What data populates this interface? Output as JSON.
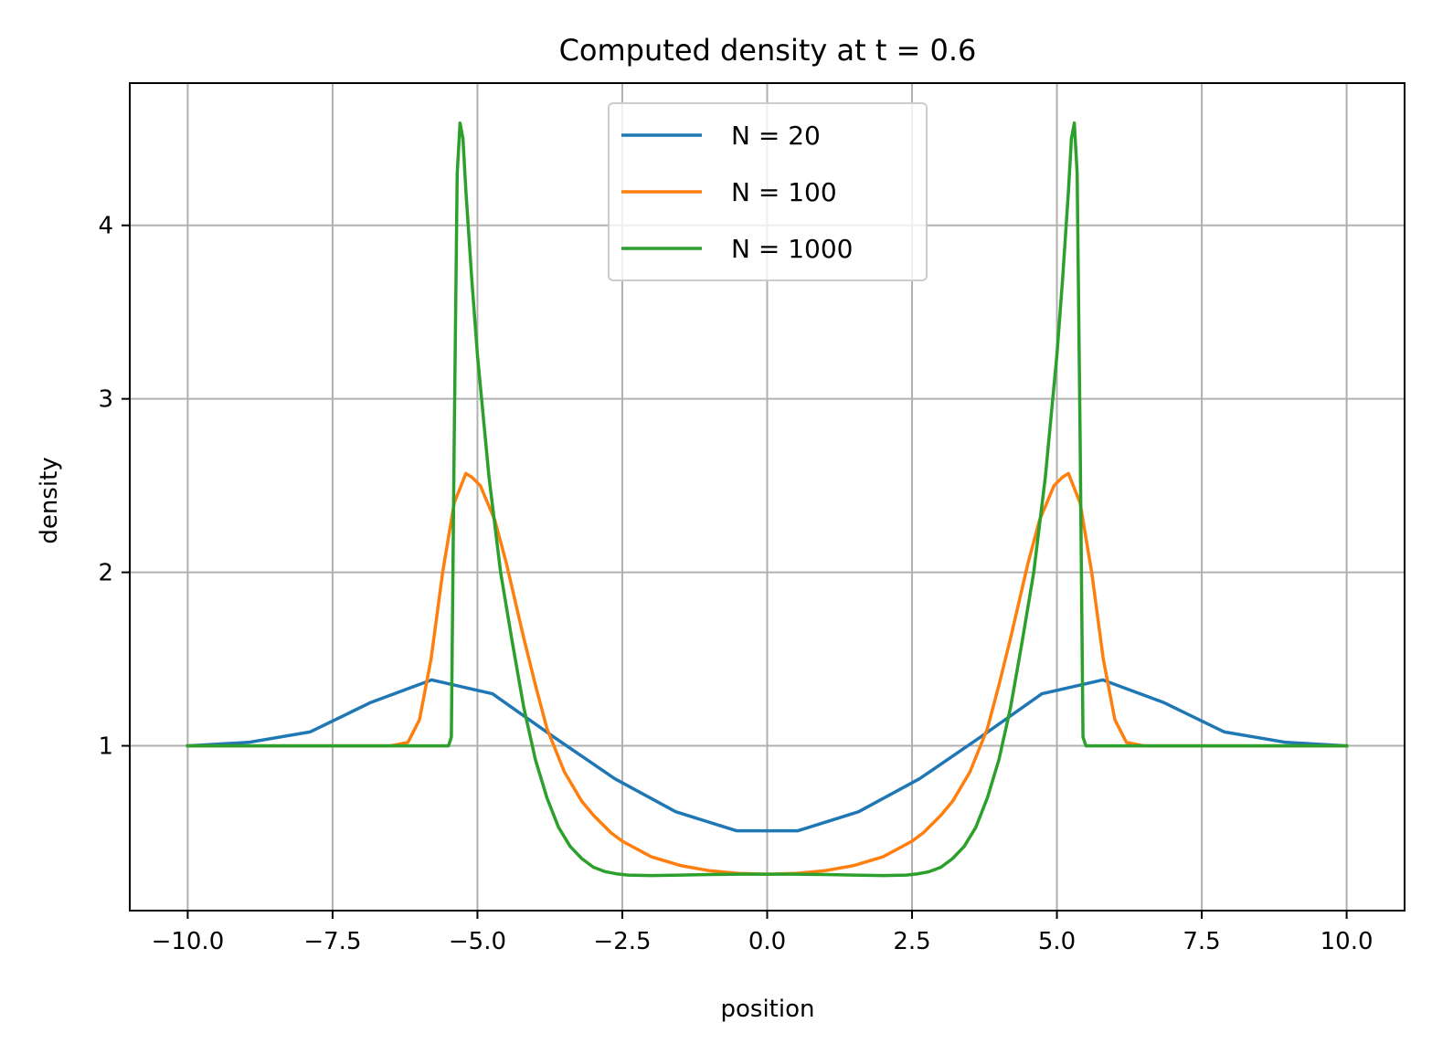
{
  "chart_data": {
    "type": "line",
    "title": "Computed density at t = 0.6",
    "xlabel": "position",
    "ylabel": "density",
    "xlim": [
      -11.0,
      11.0
    ],
    "ylim": [
      0.05,
      4.82
    ],
    "xticks": [
      -10.0,
      -7.5,
      -5.0,
      -2.5,
      0.0,
      2.5,
      5.0,
      7.5,
      10.0
    ],
    "xtick_labels": [
      "−10.0",
      "−7.5",
      "−5.0",
      "−2.5",
      "0.0",
      "2.5",
      "5.0",
      "7.5",
      "10.0"
    ],
    "yticks": [
      1,
      2,
      3,
      4
    ],
    "ytick_labels": [
      "1",
      "2",
      "3",
      "4"
    ],
    "grid": true,
    "legend_position": "upper center",
    "series": [
      {
        "name": "N = 20",
        "color": "#1f77b4",
        "x": [
          -10.0,
          -8.95,
          -7.89,
          -6.84,
          -5.79,
          -4.74,
          -3.68,
          -2.63,
          -1.58,
          -0.53,
          0.53,
          1.58,
          2.63,
          3.68,
          4.74,
          5.79,
          6.84,
          7.89,
          8.95,
          10.0
        ],
        "y": [
          1.0,
          1.02,
          1.08,
          1.25,
          1.38,
          1.3,
          1.05,
          0.81,
          0.62,
          0.51,
          0.51,
          0.62,
          0.81,
          1.05,
          1.3,
          1.38,
          1.25,
          1.08,
          1.02,
          1.0
        ]
      },
      {
        "name": "N = 100",
        "color": "#ff7f0e",
        "x": [
          -10.0,
          -7.0,
          -6.5,
          -6.2,
          -6.0,
          -5.8,
          -5.6,
          -5.4,
          -5.2,
          -5.1,
          -4.95,
          -4.7,
          -4.5,
          -4.2,
          -4.0,
          -3.8,
          -3.5,
          -3.2,
          -3.0,
          -2.7,
          -2.5,
          -2.0,
          -1.5,
          -1.0,
          -0.5,
          0.0,
          0.5,
          1.0,
          1.5,
          2.0,
          2.5,
          2.7,
          3.0,
          3.2,
          3.5,
          3.8,
          4.0,
          4.2,
          4.5,
          4.7,
          4.95,
          5.1,
          5.2,
          5.4,
          5.6,
          5.8,
          6.0,
          6.2,
          6.5,
          7.0,
          10.0
        ],
        "y": [
          1.0,
          1.0,
          1.0,
          1.02,
          1.15,
          1.5,
          2.0,
          2.4,
          2.57,
          2.55,
          2.5,
          2.3,
          2.05,
          1.62,
          1.35,
          1.1,
          0.85,
          0.68,
          0.6,
          0.5,
          0.45,
          0.36,
          0.31,
          0.28,
          0.265,
          0.26,
          0.265,
          0.28,
          0.31,
          0.36,
          0.45,
          0.5,
          0.6,
          0.68,
          0.85,
          1.1,
          1.35,
          1.62,
          2.05,
          2.3,
          2.5,
          2.55,
          2.57,
          2.4,
          2.0,
          1.5,
          1.15,
          1.02,
          1.0,
          1.0,
          1.0
        ]
      },
      {
        "name": "N = 1000",
        "color": "#2ca02c",
        "x": [
          -10.0,
          -5.5,
          -5.45,
          -5.4,
          -5.35,
          -5.3,
          -5.25,
          -5.2,
          -5.1,
          -5.0,
          -4.8,
          -4.6,
          -4.4,
          -4.2,
          -4.0,
          -3.8,
          -3.6,
          -3.4,
          -3.2,
          -3.0,
          -2.8,
          -2.6,
          -2.4,
          -2.0,
          -1.5,
          -1.0,
          -0.5,
          0.0,
          0.5,
          1.0,
          1.5,
          2.0,
          2.4,
          2.6,
          2.8,
          3.0,
          3.2,
          3.4,
          3.6,
          3.8,
          4.0,
          4.2,
          4.4,
          4.6,
          4.8,
          5.0,
          5.1,
          5.2,
          5.25,
          5.3,
          5.35,
          5.4,
          5.45,
          5.5,
          10.0
        ],
        "y": [
          1.0,
          1.0,
          1.05,
          2.8,
          4.3,
          4.59,
          4.5,
          4.2,
          3.7,
          3.25,
          2.55,
          2.0,
          1.6,
          1.22,
          0.92,
          0.7,
          0.53,
          0.42,
          0.35,
          0.3,
          0.275,
          0.262,
          0.255,
          0.252,
          0.255,
          0.258,
          0.26,
          0.26,
          0.26,
          0.258,
          0.255,
          0.252,
          0.255,
          0.262,
          0.275,
          0.3,
          0.35,
          0.42,
          0.53,
          0.7,
          0.92,
          1.22,
          1.6,
          2.0,
          2.55,
          3.25,
          3.7,
          4.2,
          4.5,
          4.59,
          4.3,
          2.8,
          1.05,
          1.0,
          1.0
        ]
      }
    ]
  }
}
